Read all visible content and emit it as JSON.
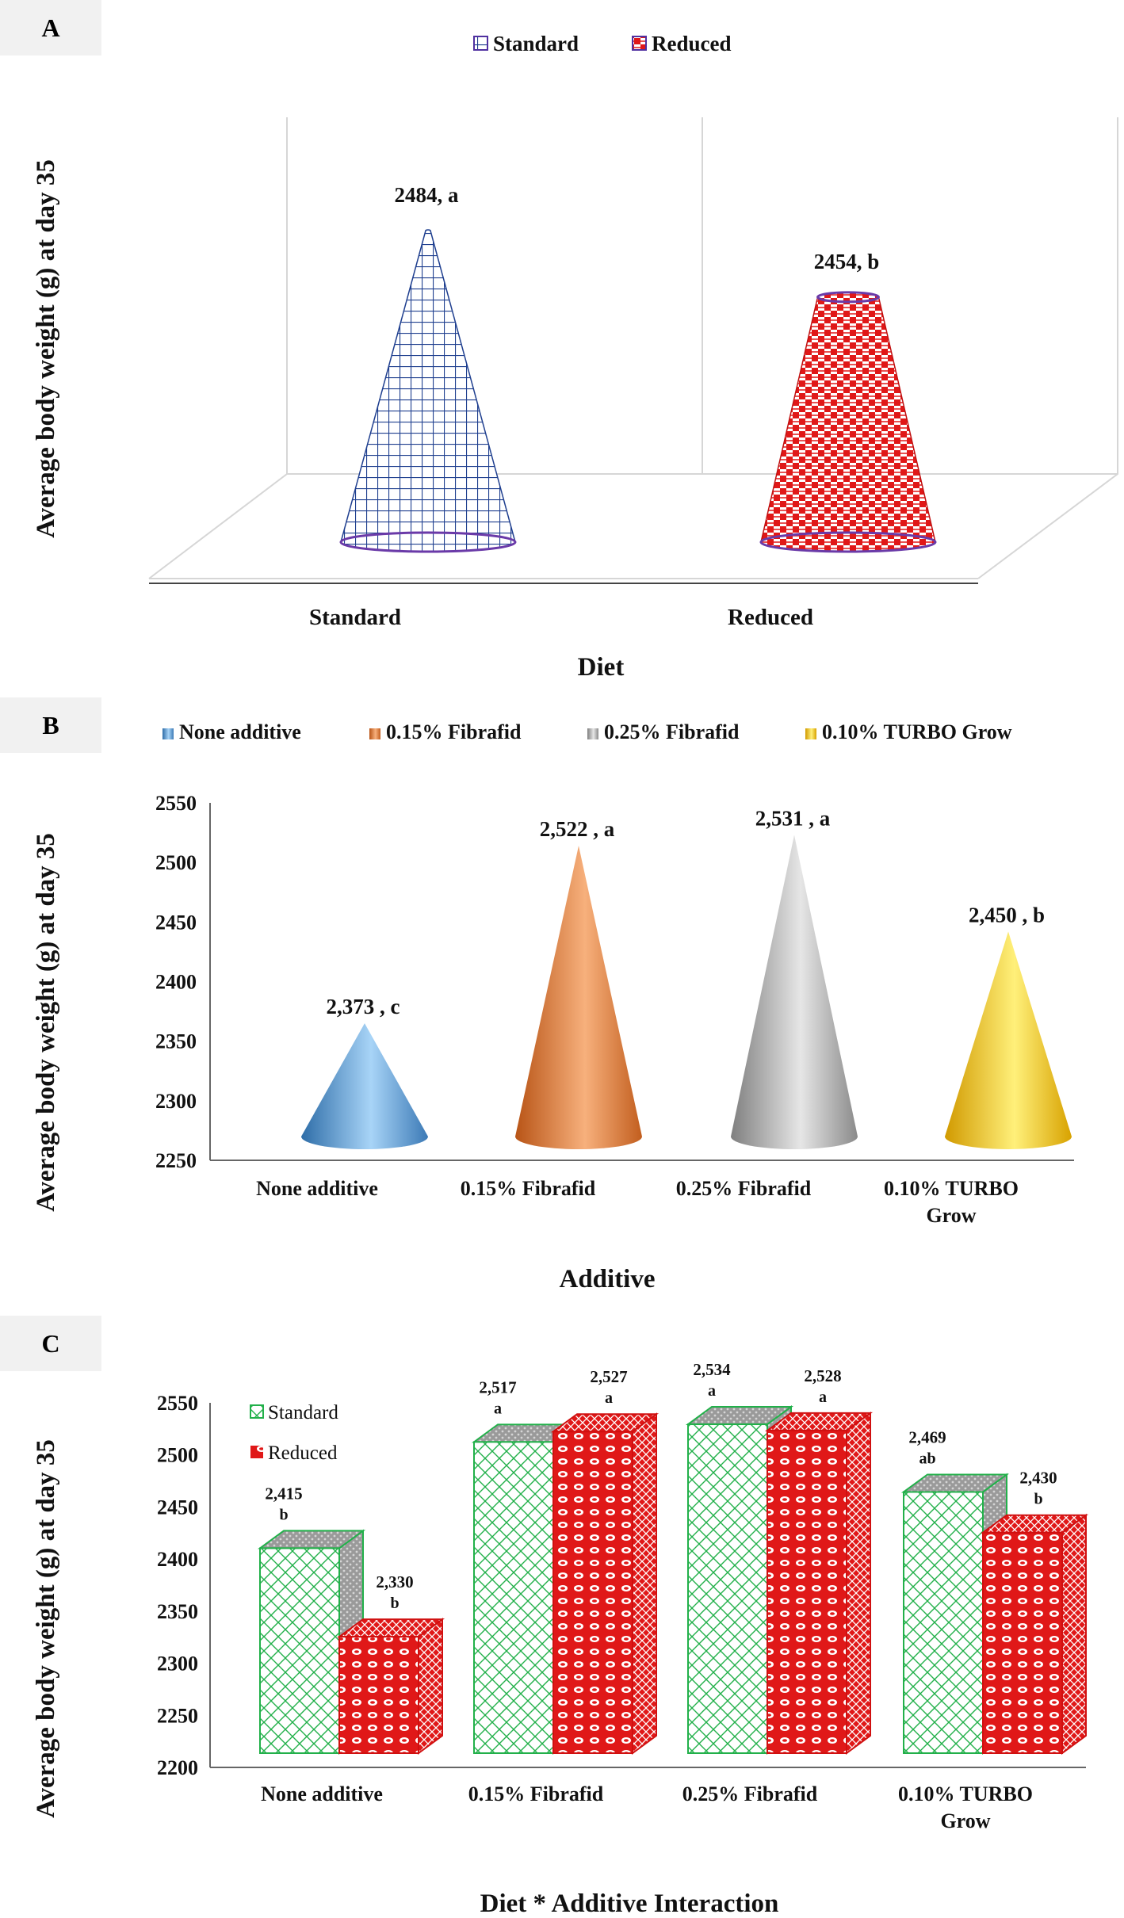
{
  "chart_data": [
    {
      "type": "bar",
      "panel": "A",
      "title": "",
      "xlabel": "Diet",
      "ylabel": "Average body weight (g) at day 35",
      "categories": [
        "Standard",
        "Reduced"
      ],
      "values": [
        2484,
        2454
      ],
      "data_labels": [
        "2484, a",
        "2454, b"
      ],
      "legend": [
        "Standard",
        "Reduced"
      ],
      "legend_position": "top",
      "colors": [
        "#1f3f8f",
        "#e01818"
      ]
    },
    {
      "type": "bar",
      "panel": "B",
      "title": "",
      "xlabel": "Additive",
      "ylabel": "Average body weight (g) at day 35",
      "categories": [
        "None additive",
        "0.15% Fibrafid",
        "0.25% Fibrafid",
        "0.10% TURBO Grow"
      ],
      "values": [
        2373,
        2522,
        2531,
        2450
      ],
      "data_labels": [
        "2,373 , c",
        "2,522 , a",
        "2,531 , a",
        "2,450 , b"
      ],
      "ylim": [
        2250,
        2550
      ],
      "yticks": [
        "2250",
        "2300",
        "2350",
        "2400",
        "2450",
        "2500",
        "2550"
      ],
      "legend": [
        "None additive",
        "0.15% Fibrafid",
        "0.25% Fibrafid",
        "0.10% TURBO Grow"
      ],
      "legend_position": "top",
      "colors": [
        "#5b9bd5",
        "#ed7d31",
        "#a5a5a5",
        "#ffc000"
      ]
    },
    {
      "type": "bar",
      "panel": "C",
      "title": "",
      "xlabel": "Diet * Additive Interaction",
      "ylabel": "Average body weight  (g) at day 35",
      "categories": [
        "None additive",
        "0.15% Fibrafid",
        "0.25% Fibrafid",
        "0.10% TURBO Grow"
      ],
      "series": [
        {
          "name": "Standard",
          "values": [
            2415,
            2517,
            2534,
            2469
          ],
          "value_labels": [
            "2,415",
            "2,517",
            "2,534",
            "2,469"
          ],
          "letters": [
            "b",
            "a",
            "a",
            "ab"
          ]
        },
        {
          "name": "Reduced",
          "values": [
            2330,
            2527,
            2528,
            2430
          ],
          "value_labels": [
            "2,330",
            "2,527",
            "2,528",
            "2,430"
          ],
          "letters": [
            "b",
            "a",
            "a",
            "b"
          ]
        }
      ],
      "ylim": [
        2200,
        2550
      ],
      "yticks": [
        "2200",
        "2250",
        "2300",
        "2350",
        "2400",
        "2450",
        "2500",
        "2550"
      ],
      "legend": [
        "Standard",
        "Reduced"
      ],
      "legend_position": "top-left",
      "colors": [
        "#20b040",
        "#e01818"
      ]
    }
  ],
  "panels": {
    "a_tag": "A",
    "b_tag": "B",
    "c_tag": "C"
  }
}
